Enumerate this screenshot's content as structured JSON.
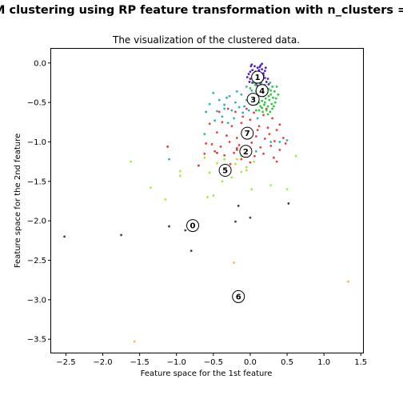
{
  "figure": {
    "suptitle": "M clustering using RP feature transformation with n_clusters = "
  },
  "chart_data": {
    "type": "scatter",
    "title": "The visualization of the clustered data.",
    "xlabel": "Feature space for the 1st feature",
    "ylabel": "Feature space for the 2nd feature",
    "xlim": [
      -2.7,
      1.53
    ],
    "ylim": [
      -3.67,
      0.18
    ],
    "xticks": [
      -2.5,
      -2.0,
      -1.5,
      -1.0,
      -0.5,
      0.0,
      0.5,
      1.0,
      1.5
    ],
    "yticks": [
      0.0,
      -0.5,
      -1.0,
      -1.5,
      -2.0,
      -2.5,
      -3.0,
      -3.5
    ],
    "xtick_labels": [
      "−2.5",
      "−2.0",
      "−1.5",
      "−1.0",
      "−0.5",
      "0.0",
      "0.5",
      "1.0",
      "1.5"
    ],
    "ytick_labels": [
      "0.0",
      "−0.5",
      "−1.0",
      "−1.5",
      "−2.0",
      "−2.5",
      "−3.0",
      "−3.5"
    ],
    "grid": false,
    "cluster_colors": [
      "#404040",
      "#5a1fbf",
      "#e8413a",
      "#2ab3b8",
      "#27c93f",
      "#9ef03a",
      "#f5b94a",
      "#d23b36"
    ],
    "centers": [
      {
        "label": "0",
        "x": -0.78,
        "y": -2.06
      },
      {
        "label": "1",
        "x": 0.1,
        "y": -0.18
      },
      {
        "label": "2",
        "x": -0.06,
        "y": -1.12
      },
      {
        "label": "3",
        "x": 0.04,
        "y": -0.46
      },
      {
        "label": "4",
        "x": 0.16,
        "y": -0.35
      },
      {
        "label": "5",
        "x": -0.34,
        "y": -1.36
      },
      {
        "label": "6",
        "x": -0.16,
        "y": -2.96
      },
      {
        "label": "7",
        "x": -0.04,
        "y": -0.89
      }
    ],
    "series": [
      {
        "cluster": 0,
        "points": [
          [
            -2.52,
            -2.2
          ],
          [
            -1.75,
            -2.18
          ],
          [
            -1.1,
            -2.07
          ],
          [
            -0.88,
            -2.12
          ],
          [
            -0.8,
            -2.38
          ],
          [
            -0.2,
            -2.01
          ],
          [
            -0.16,
            -1.81
          ],
          [
            0.0,
            -1.96
          ],
          [
            0.52,
            -1.78
          ]
        ]
      },
      {
        "cluster": 1,
        "points": [
          [
            0.02,
            -0.02
          ],
          [
            0.06,
            -0.04
          ],
          [
            0.1,
            -0.06
          ],
          [
            0.13,
            -0.05
          ],
          [
            0.16,
            -0.08
          ],
          [
            0.03,
            -0.09
          ],
          [
            0.07,
            -0.11
          ],
          [
            0.12,
            -0.12
          ],
          [
            0.18,
            -0.13
          ],
          [
            -0.02,
            -0.14
          ],
          [
            0.04,
            -0.16
          ],
          [
            0.09,
            -0.17
          ],
          [
            0.15,
            -0.18
          ],
          [
            0.2,
            -0.19
          ],
          [
            0.0,
            -0.2
          ],
          [
            0.06,
            -0.22
          ],
          [
            0.11,
            -0.23
          ],
          [
            0.17,
            -0.21
          ],
          [
            0.22,
            -0.24
          ],
          [
            0.03,
            -0.25
          ],
          [
            0.08,
            -0.27
          ],
          [
            0.14,
            -0.26
          ],
          [
            0.19,
            -0.28
          ],
          [
            0.01,
            -0.04
          ],
          [
            0.14,
            -0.03
          ],
          [
            0.2,
            -0.1
          ],
          [
            -0.01,
            -0.24
          ],
          [
            0.1,
            -0.29
          ],
          [
            0.17,
            -0.3
          ],
          [
            0.24,
            -0.2
          ],
          [
            0.05,
            -0.13
          ],
          [
            0.12,
            -0.09
          ],
          [
            0.08,
            -0.2
          ],
          [
            0.18,
            -0.16
          ],
          [
            0.25,
            -0.27
          ],
          [
            -0.04,
            -0.18
          ],
          [
            0.21,
            -0.06
          ],
          [
            0.16,
            -0.01
          ],
          [
            0.0,
            -0.11
          ],
          [
            0.1,
            -0.15
          ]
        ],
        "note_ignore": ""
      },
      {
        "cluster": 2,
        "points": [
          [
            -0.3,
            -0.58
          ],
          [
            -0.2,
            -0.62
          ],
          [
            -0.1,
            -0.68
          ],
          [
            0.05,
            -0.63
          ],
          [
            0.18,
            -0.66
          ],
          [
            0.3,
            -0.7
          ],
          [
            -0.38,
            -0.75
          ],
          [
            -0.25,
            -0.8
          ],
          [
            -0.12,
            -0.76
          ],
          [
            0.0,
            -0.72
          ],
          [
            0.12,
            -0.8
          ],
          [
            0.24,
            -0.82
          ],
          [
            0.36,
            -0.85
          ],
          [
            -0.45,
            -0.88
          ],
          [
            -0.32,
            -0.92
          ],
          [
            -0.18,
            -0.95
          ],
          [
            0.08,
            -0.93
          ],
          [
            0.2,
            -0.96
          ],
          [
            0.33,
            -0.99
          ],
          [
            0.45,
            -0.95
          ],
          [
            -0.52,
            -1.03
          ],
          [
            -0.4,
            -1.06
          ],
          [
            -0.28,
            -1.0
          ],
          [
            -0.15,
            -1.04
          ],
          [
            0.02,
            -1.01
          ],
          [
            0.14,
            -1.07
          ],
          [
            0.28,
            -1.05
          ],
          [
            0.4,
            -1.1
          ],
          [
            -0.6,
            -1.02
          ],
          [
            -0.48,
            -1.12
          ],
          [
            -0.35,
            -1.17
          ],
          [
            -0.22,
            -1.14
          ],
          [
            0.06,
            -1.18
          ],
          [
            0.18,
            -1.15
          ],
          [
            0.32,
            -1.2
          ],
          [
            -0.12,
            -1.22
          ],
          [
            0.0,
            -1.26
          ],
          [
            -0.27,
            -1.28
          ],
          [
            0.1,
            -0.85
          ],
          [
            -0.05,
            -0.58
          ],
          [
            0.4,
            -0.78
          ],
          [
            -0.55,
            -0.77
          ],
          [
            0.22,
            -0.58
          ],
          [
            -0.08,
            -0.84
          ],
          [
            0.48,
            -1.02
          ],
          [
            -0.42,
            -0.62
          ],
          [
            0.36,
            -1.25
          ],
          [
            -0.62,
            -1.15
          ],
          [
            0.26,
            -0.9
          ],
          [
            -0.18,
            -1.08
          ]
        ]
      },
      {
        "cluster": 3,
        "points": [
          [
            -0.5,
            -0.38
          ],
          [
            -0.42,
            -0.47
          ],
          [
            -0.35,
            -0.53
          ],
          [
            -0.28,
            -0.42
          ],
          [
            -0.2,
            -0.5
          ],
          [
            -0.12,
            -0.4
          ],
          [
            -0.05,
            -0.47
          ],
          [
            0.02,
            -0.35
          ],
          [
            -0.15,
            -0.56
          ],
          [
            -0.25,
            -0.6
          ],
          [
            -0.08,
            -0.55
          ],
          [
            -0.32,
            -0.44
          ],
          [
            -0.18,
            -0.36
          ],
          [
            -0.45,
            -0.61
          ],
          [
            -0.1,
            -0.63
          ],
          [
            -0.55,
            -0.52
          ],
          [
            -0.22,
            -0.7
          ],
          [
            -0.38,
            -0.68
          ],
          [
            -0.02,
            -0.6
          ],
          [
            0.05,
            -0.52
          ],
          [
            -0.48,
            -0.73
          ],
          [
            -0.6,
            -0.62
          ],
          [
            -0.3,
            -0.76
          ],
          [
            -0.62,
            -0.9
          ],
          [
            -0.05,
            -0.3
          ],
          [
            0.1,
            -0.7
          ],
          [
            0.4,
            -1.0
          ],
          [
            0.5,
            -0.98
          ],
          [
            0.08,
            -1.12
          ],
          [
            -1.1,
            -1.22
          ],
          [
            0.28,
            -1.0
          ],
          [
            -0.35,
            -0.58
          ]
        ]
      },
      {
        "cluster": 4,
        "points": [
          [
            0.05,
            -0.25
          ],
          [
            0.1,
            -0.3
          ],
          [
            0.15,
            -0.32
          ],
          [
            0.2,
            -0.28
          ],
          [
            0.25,
            -0.33
          ],
          [
            0.3,
            -0.3
          ],
          [
            0.08,
            -0.36
          ],
          [
            0.13,
            -0.39
          ],
          [
            0.18,
            -0.42
          ],
          [
            0.23,
            -0.38
          ],
          [
            0.28,
            -0.4
          ],
          [
            0.33,
            -0.36
          ],
          [
            0.06,
            -0.44
          ],
          [
            0.11,
            -0.46
          ],
          [
            0.16,
            -0.48
          ],
          [
            0.21,
            -0.45
          ],
          [
            0.26,
            -0.47
          ],
          [
            0.31,
            -0.44
          ],
          [
            0.09,
            -0.52
          ],
          [
            0.14,
            -0.55
          ],
          [
            0.19,
            -0.53
          ],
          [
            0.24,
            -0.55
          ],
          [
            0.29,
            -0.52
          ],
          [
            0.12,
            -0.6
          ],
          [
            0.17,
            -0.62
          ],
          [
            0.22,
            -0.6
          ],
          [
            0.27,
            -0.62
          ],
          [
            0.0,
            -0.32
          ],
          [
            0.35,
            -0.45
          ],
          [
            0.03,
            -0.4
          ],
          [
            0.36,
            -0.3
          ],
          [
            0.32,
            -0.55
          ],
          [
            0.07,
            -0.28
          ],
          [
            0.15,
            -0.25
          ],
          [
            0.22,
            -0.33
          ],
          [
            0.27,
            -0.25
          ],
          [
            0.1,
            -0.42
          ],
          [
            0.25,
            -0.42
          ],
          [
            0.2,
            -0.5
          ],
          [
            0.3,
            -0.58
          ],
          [
            0.05,
            -0.5
          ],
          [
            0.34,
            -0.5
          ],
          [
            0.18,
            -0.36
          ],
          [
            0.12,
            -0.5
          ],
          [
            0.24,
            -0.65
          ],
          [
            0.28,
            -0.35
          ],
          [
            0.16,
            -0.57
          ],
          [
            0.38,
            -0.4
          ],
          [
            0.02,
            -0.46
          ],
          [
            0.08,
            -0.6
          ]
        ]
      },
      {
        "cluster": 5,
        "points": [
          [
            -1.62,
            -1.25
          ],
          [
            -1.35,
            -1.58
          ],
          [
            -1.15,
            -1.73
          ],
          [
            -0.95,
            -1.37
          ],
          [
            -0.95,
            -1.43
          ],
          [
            -0.62,
            -1.2
          ],
          [
            -0.55,
            -1.39
          ],
          [
            -0.5,
            -1.68
          ],
          [
            -0.45,
            -1.27
          ],
          [
            -0.38,
            -1.5
          ],
          [
            -0.3,
            -1.32
          ],
          [
            -0.25,
            -1.45
          ],
          [
            -0.2,
            -1.28
          ],
          [
            -0.12,
            -1.38
          ],
          [
            -0.05,
            -1.32
          ],
          [
            -0.58,
            -1.7
          ],
          [
            0.02,
            -1.6
          ],
          [
            0.05,
            -1.25
          ],
          [
            0.28,
            -1.55
          ],
          [
            0.5,
            -1.6
          ],
          [
            0.62,
            -1.18
          ],
          [
            -0.35,
            -1.22
          ],
          [
            -0.12,
            -1.18
          ],
          [
            -0.4,
            -1.34
          ]
        ]
      },
      {
        "cluster": 6,
        "points": [
          [
            -0.22,
            -2.53
          ],
          [
            1.33,
            -2.77
          ],
          [
            -1.57,
            -3.53
          ],
          [
            -0.18,
            -1.22
          ],
          [
            -0.05,
            -1.36
          ]
        ]
      },
      {
        "cluster": 7,
        "points": [
          [
            -1.12,
            -1.06
          ],
          [
            -0.7,
            -1.3
          ],
          [
            -0.45,
            -1.14
          ],
          [
            -0.18,
            -1.1
          ]
        ]
      }
    ]
  }
}
